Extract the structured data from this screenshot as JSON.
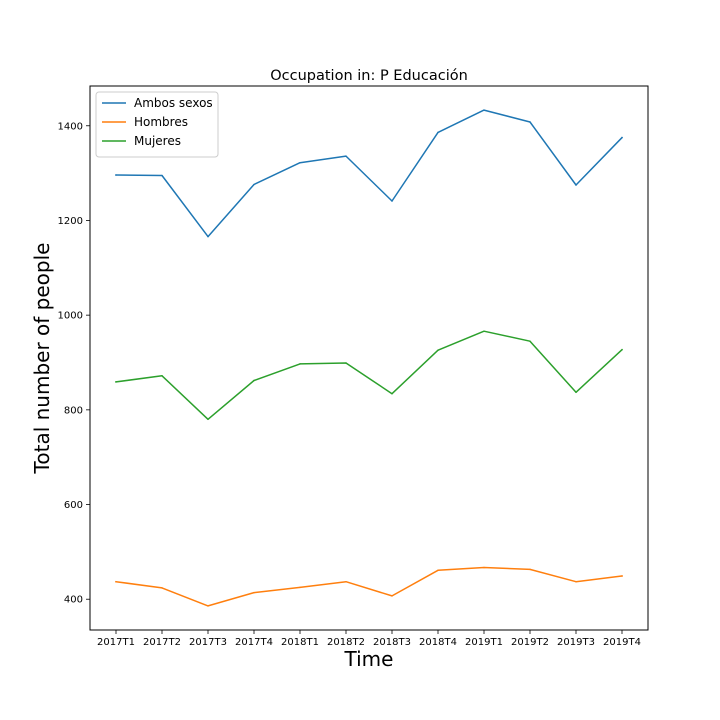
{
  "chart_data": {
    "type": "line",
    "title": "Occupation in: P Educación",
    "xlabel": "Time",
    "ylabel": "Total number of people",
    "categories": [
      "2017T1",
      "2017T2",
      "2017T3",
      "2017T4",
      "2018T1",
      "2018T2",
      "2018T3",
      "2018T4",
      "2019T1",
      "2019T2",
      "2019T3",
      "2019T4"
    ],
    "yticks": [
      400,
      600,
      800,
      1000,
      1200,
      1400
    ],
    "ylim": [
      335,
      1484
    ],
    "grid": false,
    "legend_position": "top-left",
    "series": [
      {
        "name": "Ambos sexos",
        "color": "#1f77b4",
        "values": [
          1296,
          1295,
          1166,
          1276,
          1322,
          1336,
          1241,
          1386,
          1433,
          1408,
          1275,
          1375
        ]
      },
      {
        "name": "Hombres",
        "color": "#ff7f0e",
        "values": [
          437,
          424,
          386,
          414,
          425,
          437,
          407,
          461,
          467,
          463,
          437,
          449
        ]
      },
      {
        "name": "Mujeres",
        "color": "#2ca02c",
        "values": [
          859,
          872,
          780,
          862,
          897,
          899,
          834,
          926,
          966,
          945,
          837,
          927
        ]
      }
    ]
  }
}
